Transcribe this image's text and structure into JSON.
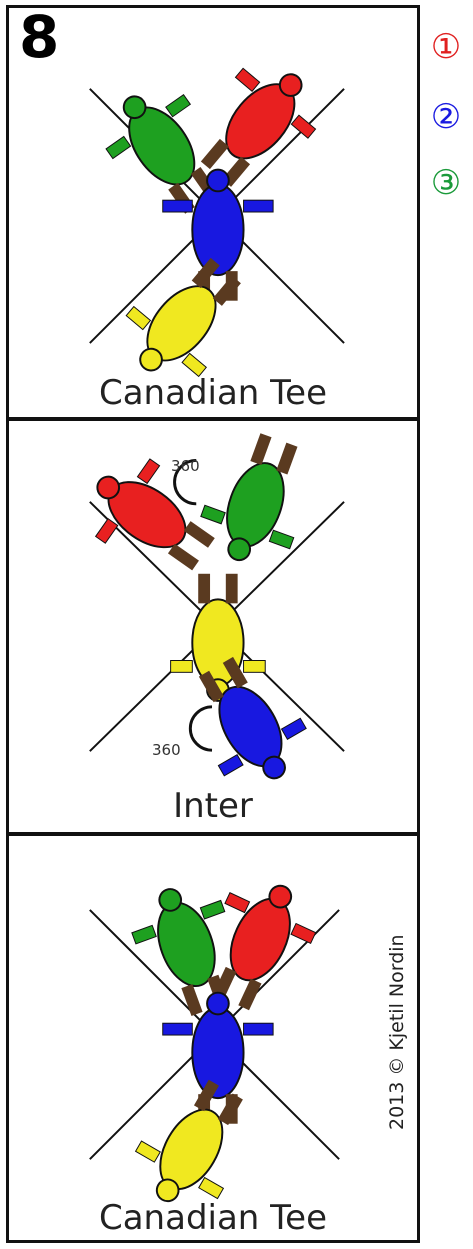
{
  "number": "8",
  "legend": [
    {
      "label": "①",
      "color": "#e02020"
    },
    {
      "label": "②",
      "color": "#1a1ae0"
    },
    {
      "label": "③",
      "color": "#1a9a3a"
    }
  ],
  "colors": {
    "red": "#e82020",
    "green": "#1ea020",
    "blue": "#1818e0",
    "yellow": "#f0e820"
  },
  "panels": [
    {
      "caption": "Canadian Tee"
    },
    {
      "caption": "Inter",
      "rotations": [
        "360",
        "360"
      ]
    },
    {
      "caption": "Canadian Tee"
    }
  ],
  "copyright": "2013 © Kjetil Nordin"
}
